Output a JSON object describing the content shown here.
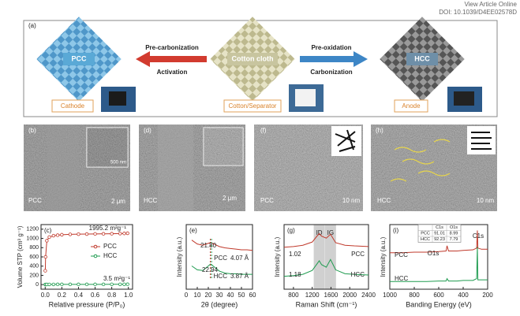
{
  "header": {
    "link": "View Article Online",
    "doi": "DOI: 10.1039/D4EE02578D"
  },
  "panel_a": {
    "label": "(a)",
    "pcc": "PCC",
    "cotton": "Cotton cloth",
    "hcc": "HCC",
    "left_arrow": [
      "Pre-carbonization",
      "Activation"
    ],
    "right_arrow": [
      "Pre-oxidation",
      "Carbonization"
    ],
    "cathode": "Cathode",
    "separator": "Cotton/Separator",
    "anode": "Anode"
  },
  "micrographs": [
    {
      "label": "(b)",
      "sample": "PCC",
      "scale": "2 μm",
      "inset_scale": "500 nm"
    },
    {
      "label": "(d)",
      "sample": "HCC",
      "scale": "2 μm"
    },
    {
      "label": "(f)",
      "sample": "PCC",
      "scale": "10 nm"
    },
    {
      "label": "(h)",
      "sample": "HCC",
      "scale": "10 nm"
    }
  ],
  "chart_data": [
    {
      "type": "line",
      "panel": "(c)",
      "xlabel": "Relative pressure (P/P₀)",
      "ylabel": "Volume STP (cm³ g⁻¹)",
      "xlim": [
        -0.05,
        1.05
      ],
      "ylim": [
        -100,
        1300
      ],
      "xticks": [
        {
          "value": 0,
          "label": "0.0"
        },
        0.2,
        0.4,
        0.6,
        0.8,
        {
          "value": 1,
          "label": "1.0"
        }
      ],
      "yticks": [
        0,
        200,
        400,
        600,
        800,
        1000,
        1200
      ],
      "x": [
        0.001,
        0.005,
        0.02,
        0.05,
        0.1,
        0.15,
        0.2,
        0.3,
        0.4,
        0.5,
        0.6,
        0.7,
        0.8,
        0.9,
        0.95,
        0.99
      ],
      "series": [
        {
          "name": "PCC",
          "color": "#c0392b",
          "marker": "open-circle",
          "values": [
            300,
            600,
            950,
            1030,
            1060,
            1070,
            1080,
            1088,
            1092,
            1095,
            1098,
            1100,
            1102,
            1105,
            1108,
            1112
          ]
        },
        {
          "name": "HCC",
          "color": "#1e9b4f",
          "marker": "open-circle",
          "values": [
            2,
            2,
            3,
            4,
            4,
            5,
            5,
            5,
            5,
            5,
            5,
            5,
            6,
            6,
            6,
            7
          ]
        }
      ],
      "legend": true,
      "annotations": [
        "1995.2 m²g⁻¹",
        "3.5 m²g⁻¹"
      ]
    },
    {
      "type": "line",
      "panel": "(e)",
      "xlabel": "2θ (degree)",
      "ylabel": "Intensity (a.u.)",
      "xlim": [
        0,
        60
      ],
      "ylim": [
        0,
        10
      ],
      "xticks": [
        0,
        10,
        20,
        30,
        40,
        50,
        60
      ],
      "x": [
        5,
        10,
        15,
        20,
        22,
        25,
        30,
        35,
        40,
        45,
        50,
        55,
        60
      ],
      "series": [
        {
          "name": "PCC",
          "color": "#c0392b",
          "values": [
            7.6,
            7.0,
            6.8,
            7.1,
            7.2,
            7.0,
            6.6,
            6.4,
            6.3,
            6.2,
            6.1,
            6.1,
            6.0
          ]
        },
        {
          "name": "HCC",
          "color": "#1e9b4f",
          "values": [
            3.6,
            3.0,
            2.9,
            3.6,
            3.9,
            3.5,
            2.8,
            2.5,
            2.4,
            2.4,
            2.3,
            2.3,
            2.3
          ]
        }
      ],
      "annotations": [
        {
          "value": 21.8,
          "label": "21.80"
        },
        {
          "value": 22.94,
          "label": "22.94"
        },
        "4.07 Å",
        "3.87 Å"
      ]
    },
    {
      "type": "line",
      "panel": "(g)",
      "xlabel": "Raman Shift (cm⁻¹)",
      "ylabel": "Intensity (a.u.)",
      "xlim": [
        600,
        2400
      ],
      "ylim": [
        0,
        10
      ],
      "xticks": [
        800,
        1200,
        1600,
        2000,
        2400
      ],
      "x": [
        600,
        800,
        1000,
        1200,
        1300,
        1350,
        1400,
        1500,
        1590,
        1700,
        1900,
        2100,
        2400
      ],
      "series": [
        {
          "name": "PCC",
          "color": "#c0392b",
          "values": [
            6.5,
            6.6,
            6.8,
            7.3,
            8.2,
            8.6,
            8.2,
            7.9,
            8.5,
            7.2,
            6.8,
            6.7,
            6.6
          ]
        },
        {
          "name": "HCC",
          "color": "#1e9b4f",
          "values": [
            2,
            2.1,
            2.3,
            2.9,
            3.9,
            4.4,
            3.8,
            3.4,
            4.6,
            3,
            2.4,
            2.3,
            2.2
          ]
        }
      ],
      "bands": [
        {
          "value": 1350,
          "label": "ID"
        },
        {
          "value": 1590,
          "label": "IG"
        }
      ],
      "annotations": [
        "1.02",
        "1.18"
      ]
    },
    {
      "type": "line",
      "panel": "(i)",
      "xlabel": "Banding Energy (eV)",
      "ylabel": "Intensity (a.u.)",
      "xlim": [
        1000,
        200
      ],
      "ylim": [
        0,
        11
      ],
      "xticks": [
        1000,
        800,
        600,
        400,
        200
      ],
      "x": [
        1000,
        900,
        800,
        700,
        600,
        540,
        532,
        520,
        450,
        400,
        320,
        290,
        284,
        280,
        250,
        200
      ],
      "series": [
        {
          "name": "PCC",
          "color": "#c0392b",
          "values": [
            6.2,
            6.2,
            6.3,
            6.3,
            6.4,
            6.5,
            7.4,
            6.5,
            6.5,
            6.6,
            6.7,
            7,
            10,
            7,
            6.8,
            6.8
          ]
        },
        {
          "name": "HCC",
          "color": "#1e9b4f",
          "values": [
            1.3,
            1.3,
            1.3,
            1.3,
            1.4,
            1.4,
            1.8,
            1.4,
            1.4,
            1.5,
            1.5,
            1.8,
            7.2,
            1.6,
            1.6,
            1.6
          ]
        }
      ],
      "annotations": [
        "O1s",
        "C1s"
      ],
      "table": {
        "columns": [
          "C1s",
          "O1s"
        ],
        "rows": [
          [
            "PCC",
            91.01,
            8.99
          ],
          [
            "HCC",
            92.23,
            7.79
          ]
        ]
      }
    }
  ]
}
